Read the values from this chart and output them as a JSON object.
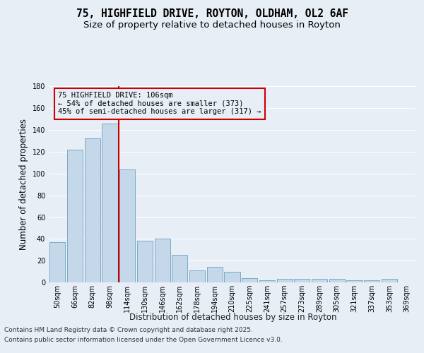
{
  "title_line1": "75, HIGHFIELD DRIVE, ROYTON, OLDHAM, OL2 6AF",
  "title_line2": "Size of property relative to detached houses in Royton",
  "xlabel": "Distribution of detached houses by size in Royton",
  "ylabel": "Number of detached properties",
  "bar_labels": [
    "50sqm",
    "66sqm",
    "82sqm",
    "98sqm",
    "114sqm",
    "130sqm",
    "146sqm",
    "162sqm",
    "178sqm",
    "194sqm",
    "210sqm",
    "225sqm",
    "241sqm",
    "257sqm",
    "273sqm",
    "289sqm",
    "305sqm",
    "321sqm",
    "337sqm",
    "353sqm",
    "369sqm"
  ],
  "bar_values": [
    37,
    122,
    132,
    146,
    104,
    38,
    40,
    25,
    11,
    14,
    10,
    4,
    2,
    3,
    3,
    3,
    3,
    2,
    2,
    3,
    0
  ],
  "bar_color": "#c5d8ea",
  "bar_edge_color": "#7aaac8",
  "background_color": "#e8eef6",
  "grid_color": "#ffffff",
  "annotation_box_text": "75 HIGHFIELD DRIVE: 106sqm\n← 54% of detached houses are smaller (373)\n45% of semi-detached houses are larger (317) →",
  "annotation_box_color": "#cc0000",
  "vline_x_index": 3,
  "vline_color": "#cc0000",
  "ylim": [
    0,
    180
  ],
  "yticks": [
    0,
    20,
    40,
    60,
    80,
    100,
    120,
    140,
    160,
    180
  ],
  "footer_line1": "Contains HM Land Registry data © Crown copyright and database right 2025.",
  "footer_line2": "Contains public sector information licensed under the Open Government Licence v3.0.",
  "title_fontsize": 10.5,
  "subtitle_fontsize": 9.5,
  "axis_label_fontsize": 8.5,
  "tick_fontsize": 7,
  "annotation_fontsize": 7.5,
  "footer_fontsize": 6.5
}
